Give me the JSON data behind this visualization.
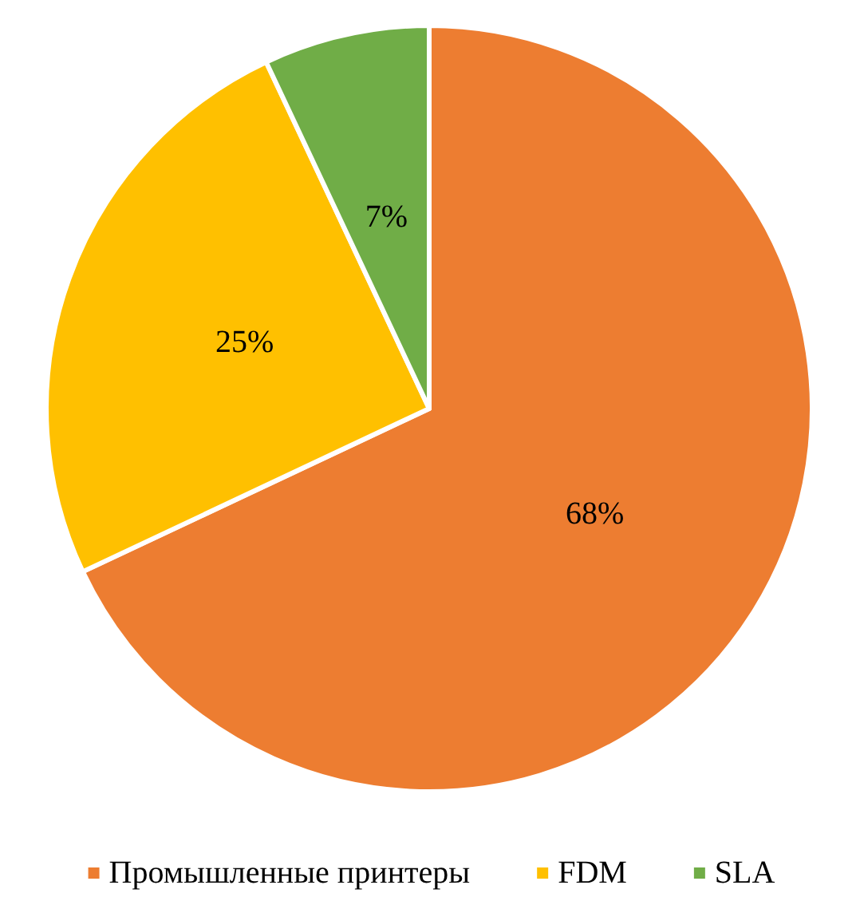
{
  "chart_data": {
    "type": "pie",
    "categories": [
      "Промышленные принтеры",
      "FDM",
      "SLA"
    ],
    "values": [
      68,
      25,
      7
    ],
    "colors": [
      "#ed7d31",
      "#ffc000",
      "#70ad47"
    ],
    "value_labels": [
      "68%",
      "25%",
      "7%"
    ],
    "legend": "bottom"
  }
}
